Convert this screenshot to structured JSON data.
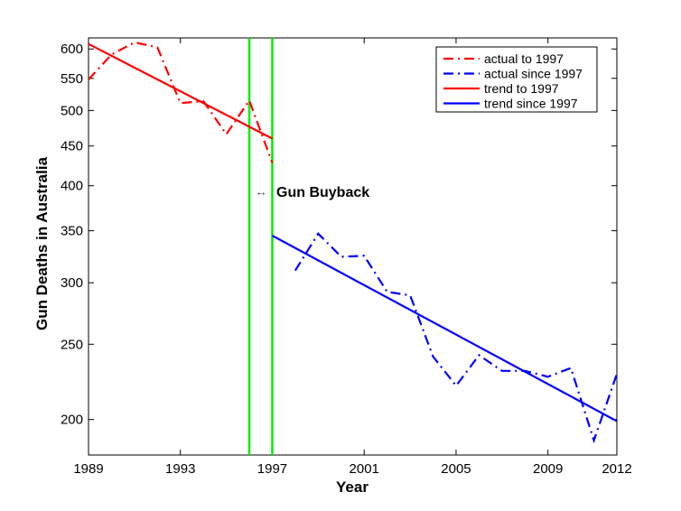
{
  "chart_data": {
    "type": "line",
    "xlabel": "Year",
    "ylabel": "Gun Deaths in Australia",
    "xlim": [
      1989,
      2012
    ],
    "ylim": [
      180,
      620
    ],
    "y_scale": "log",
    "x_ticks": [
      1989,
      1993,
      1997,
      2001,
      2005,
      2009,
      2012
    ],
    "y_ticks": [
      200,
      250,
      300,
      350,
      400,
      450,
      500,
      550,
      600
    ],
    "grid": false,
    "legend_position": "top-right",
    "series": [
      {
        "name": "actual to 1997",
        "style": "dash-dot",
        "color": "#ff0000",
        "x": [
          1989,
          1990,
          1991,
          1992,
          1993,
          1994,
          1995,
          1996,
          1997
        ],
        "y": [
          548,
          590,
          612,
          603,
          511,
          514,
          466,
          515,
          428
        ]
      },
      {
        "name": "actual since 1997",
        "style": "dash-dot",
        "color": "#0000ff",
        "x": [
          1998,
          1999,
          2000,
          2001,
          2002,
          2003,
          2004,
          2005,
          2006,
          2007,
          2008,
          2009,
          2010,
          2011,
          2012
        ],
        "y": [
          311,
          347,
          324,
          325,
          292,
          289,
          241,
          221,
          242,
          231,
          231,
          227,
          233,
          188,
          229
        ]
      },
      {
        "name": "trend to 1997",
        "style": "solid",
        "color": "#ff0000",
        "x": [
          1989,
          1997
        ],
        "y": [
          609,
          460
        ]
      },
      {
        "name": "trend since 1997",
        "style": "solid",
        "color": "#0000ff",
        "x": [
          1997,
          2012
        ],
        "y": [
          345,
          199
        ]
      }
    ],
    "vertical_lines": {
      "color": "#00ee00",
      "x": [
        1996,
        1997
      ]
    },
    "annotations": [
      {
        "text": "Gun Buyback",
        "arrow": "↔",
        "x": 1996.5,
        "y": 400
      }
    ]
  }
}
